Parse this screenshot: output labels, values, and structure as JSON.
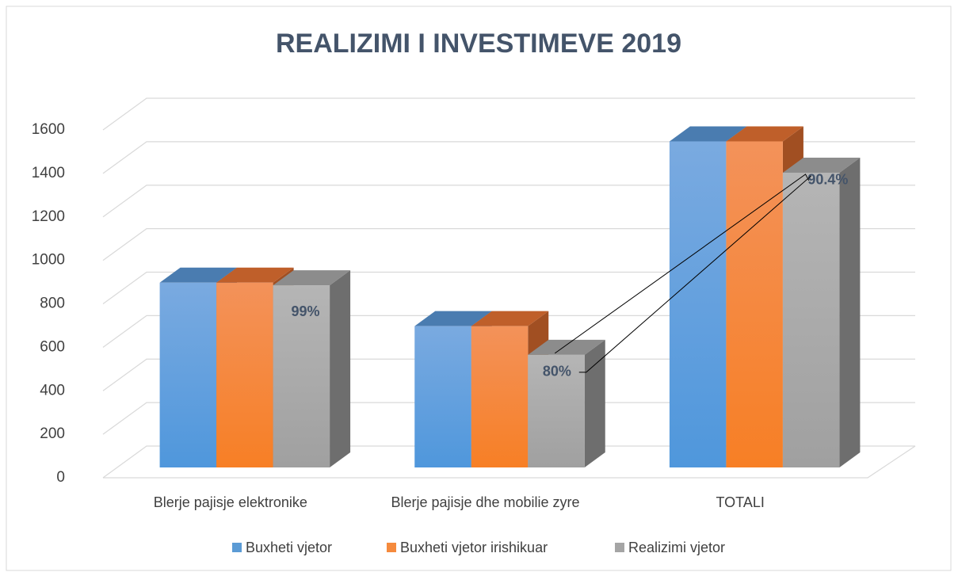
{
  "chart_data": {
    "type": "bar3d",
    "title": "REALIZIMI I INVESTIMEVE 2019",
    "categories": [
      "Blerje pajisje elektronike",
      "Blerje pajisje dhe mobilie zyre",
      "TOTALI"
    ],
    "series": [
      {
        "name": "Buxheti vjetor",
        "color": "#5b9bd5",
        "values": [
          850,
          650,
          1500
        ]
      },
      {
        "name": "Buxheti vjetor irishikuar",
        "color": "#f58a3d",
        "values": [
          850,
          650,
          1500
        ]
      },
      {
        "name": "Realizimi vjetor",
        "color": "#a5a5a5",
        "values": [
          838,
          518,
          1356
        ]
      }
    ],
    "annotations": [
      "99%",
      "80%",
      "90.4%"
    ],
    "ylim": [
      0,
      1600
    ],
    "yticks": [
      0,
      200,
      400,
      600,
      800,
      1000,
      1200,
      1400,
      1600
    ],
    "grid": true,
    "legend": "bottom"
  }
}
